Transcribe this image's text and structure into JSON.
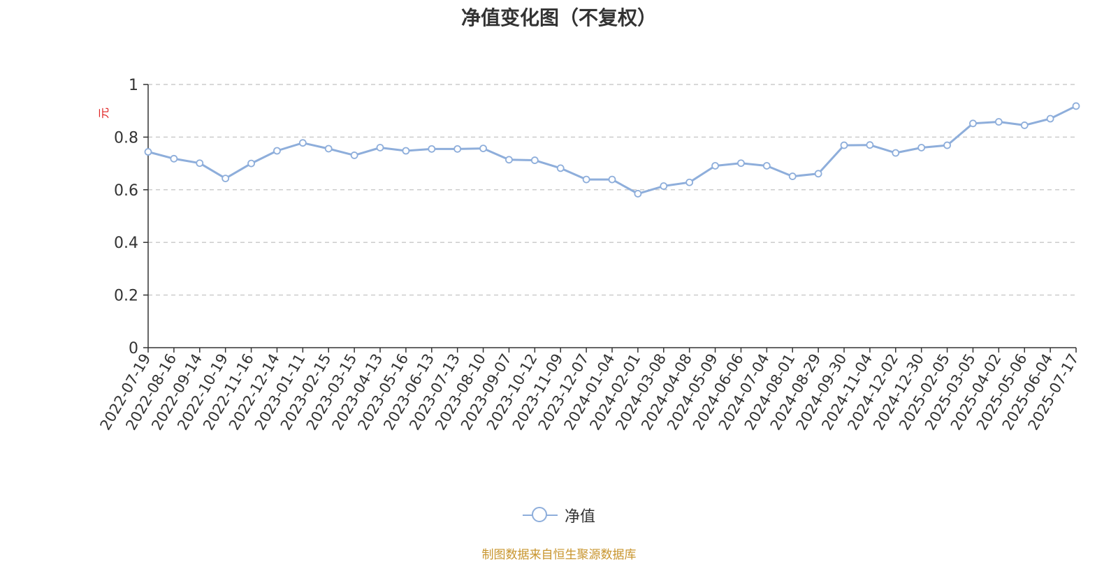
{
  "title": "净值变化图（不复权）",
  "source_note": "制图数据来自恒生聚源数据库",
  "colors": {
    "series": "#8eaedb",
    "ylabel": "#e02020",
    "grid": "#cccccc",
    "axis": "#333333",
    "source": "#c8952e"
  },
  "chart_data": {
    "type": "line",
    "title": "净值变化图（不复权）",
    "ylabel": "元",
    "ylim": [
      0,
      1
    ],
    "yticks": [
      0,
      0.2,
      0.4,
      0.6,
      0.8,
      1
    ],
    "ytick_labels": [
      "0",
      "0.2",
      "0.4",
      "0.6",
      "0.8",
      "1"
    ],
    "grid": true,
    "legend_position": "bottom-center",
    "x_tick_labels": [
      "2022-07-19",
      "2022-08-16",
      "2022-09-14",
      "2022-10-19",
      "2022-11-16",
      "2022-12-14",
      "2023-01-11",
      "2023-02-15",
      "2023-03-15",
      "2023-04-13",
      "2023-05-16",
      "2023-06-13",
      "2023-07-13",
      "2023-08-10",
      "2023-09-07",
      "2023-10-12",
      "2023-11-09",
      "2023-12-07",
      "2024-01-04",
      "2024-02-01",
      "2024-03-08",
      "2024-04-08",
      "2024-05-09",
      "2024-06-06",
      "2024-07-04",
      "2024-08-01",
      "2024-08-29",
      "2024-09-30",
      "2024-11-04",
      "2024-12-02",
      "2024-12-30",
      "2025-02-05",
      "2025-03-05",
      "2025-04-02",
      "2025-05-06",
      "2025-06-04",
      "2025-07-17"
    ],
    "series": [
      {
        "name": "净值",
        "x": [
          "2022-07-19",
          "2022-08-16",
          "2022-09-14",
          "2022-10-19",
          "2022-11-16",
          "2022-12-14",
          "2023-01-11",
          "2023-02-15",
          "2023-03-15",
          "2023-04-13",
          "2023-05-16",
          "2023-06-13",
          "2023-07-13",
          "2023-08-10",
          "2023-09-07",
          "2023-10-12",
          "2023-11-09",
          "2023-12-07",
          "2024-01-04",
          "2024-02-01",
          "2024-03-08",
          "2024-04-08",
          "2024-05-09",
          "2024-06-06",
          "2024-07-04",
          "2024-08-01",
          "2024-08-29",
          "2024-09-30",
          "2024-11-04",
          "2024-12-02",
          "2024-12-30",
          "2025-02-05",
          "2025-03-05",
          "2025-04-02",
          "2025-05-06",
          "2025-06-04",
          "2025-07-17"
        ],
        "values": [
          0.744,
          0.718,
          0.701,
          0.643,
          0.7,
          0.748,
          0.778,
          0.756,
          0.731,
          0.76,
          0.748,
          0.755,
          0.755,
          0.757,
          0.714,
          0.712,
          0.682,
          0.639,
          0.639,
          0.585,
          0.614,
          0.628,
          0.691,
          0.701,
          0.691,
          0.651,
          0.661,
          0.769,
          0.77,
          0.74,
          0.76,
          0.769,
          0.852,
          0.858,
          0.845,
          0.87,
          0.918
        ]
      }
    ]
  }
}
